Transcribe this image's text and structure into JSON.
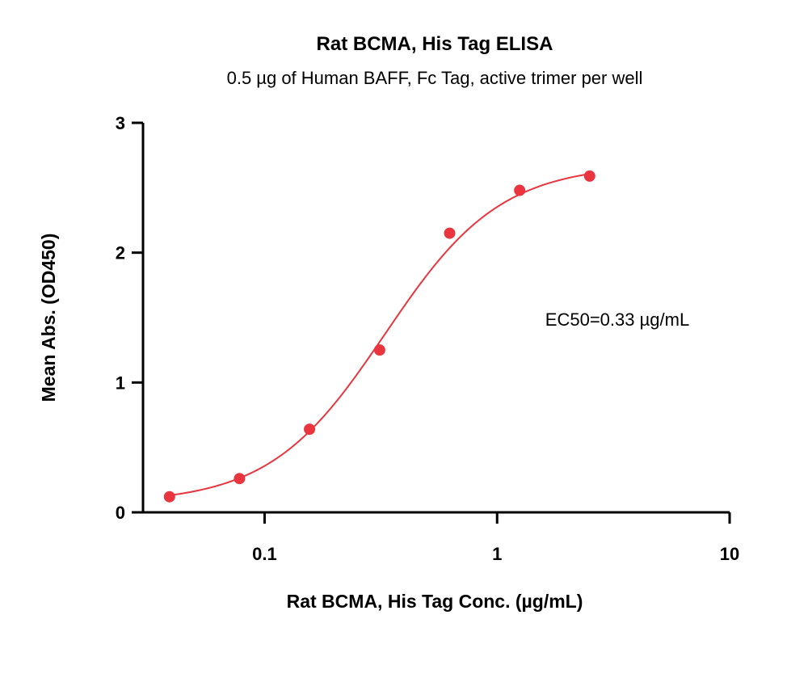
{
  "chart_data": {
    "type": "scatter",
    "title": "Rat BCMA, His Tag ELISA",
    "subtitle": "0.5 µg of Human BAFF, Fc Tag, active trimer per well",
    "xlabel": "Rat BCMA, His Tag Conc. (µg/mL)",
    "ylabel": "Mean Abs. (OD450)",
    "x_scale": "log",
    "xlim": [
      0.03,
      10
    ],
    "ylim": [
      0,
      3
    ],
    "x_ticks": [
      {
        "value": 0.1,
        "label": "0.1"
      },
      {
        "value": 1,
        "label": "1"
      },
      {
        "value": 10,
        "label": "10"
      }
    ],
    "y_ticks": [
      {
        "value": 0,
        "label": "0"
      },
      {
        "value": 1,
        "label": "1"
      },
      {
        "value": 2,
        "label": "2"
      },
      {
        "value": 3,
        "label": "3"
      }
    ],
    "series": [
      {
        "color": "#e8353e",
        "x": [
          0.039,
          0.078,
          0.156,
          0.3125,
          0.625,
          1.25,
          2.5
        ],
        "y": [
          0.12,
          0.26,
          0.64,
          1.25,
          2.15,
          2.48,
          2.59
        ]
      }
    ],
    "fit_curve": {
      "model": "4PL",
      "bottom": 0.07,
      "top": 2.68,
      "ec50": 0.33,
      "hill": 1.75,
      "color": "#e8353e"
    },
    "annotations": [
      {
        "text": "EC50=0.33 µg/mL"
      }
    ],
    "grid": false,
    "legend": "none"
  }
}
